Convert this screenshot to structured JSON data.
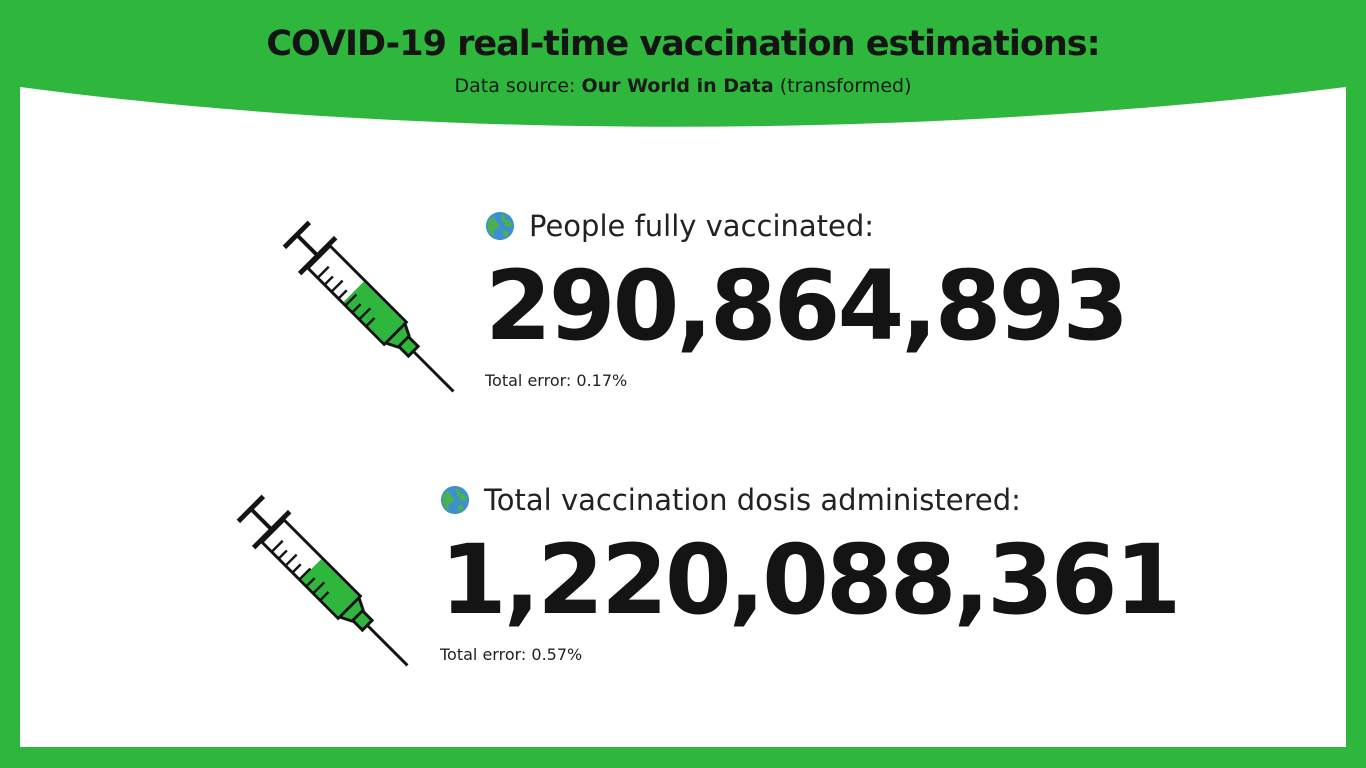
{
  "header": {
    "title": "COVID-19 real-time vaccination estimations:",
    "source_prefix": "Data source: ",
    "source_name": "Our World in Data",
    "source_suffix": " (transformed)"
  },
  "stats": [
    {
      "label": "People fully vaccinated:",
      "value": "290,864,893",
      "error": "Total error: 0.17%",
      "icon": "syringe-icon",
      "fill_fraction": 0.55
    },
    {
      "label": "Total vaccination dosis administered:",
      "value": "1,220,088,361",
      "error": "Total error: 0.57%",
      "icon": "syringe-icon",
      "fill_fraction": 0.5
    }
  ],
  "colors": {
    "brand_green": "#2fb63d",
    "panel": "#ffffff",
    "text": "#141414"
  }
}
